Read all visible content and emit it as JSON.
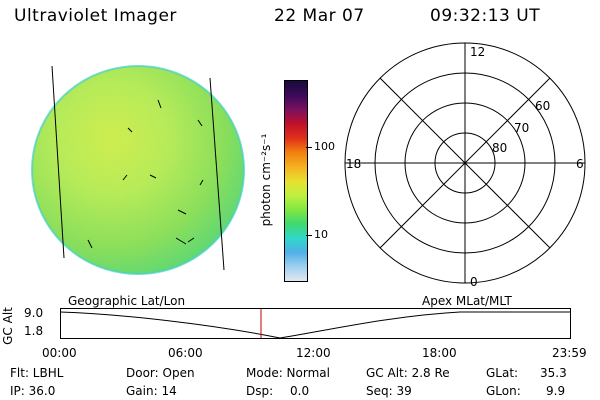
{
  "header": {
    "title": "Ultraviolet Imager",
    "date": "22 Mar 07",
    "time": "09:32:13 UT"
  },
  "colorbar": {
    "unit_label": "photon cm⁻²s⁻¹",
    "tick_100": "100",
    "tick_10": "10",
    "colors": [
      "#1a0a3a",
      "#3a0a5a",
      "#7a1060",
      "#c0102a",
      "#e0301a",
      "#f08010",
      "#f5b020",
      "#e8e030",
      "#c0f040",
      "#80e840",
      "#40d870",
      "#30d8c8",
      "#50b0e8",
      "#a0d0f0",
      "#e0e8f0"
    ]
  },
  "polar_grid": {
    "labels": {
      "top": "12",
      "bottom": "0",
      "left": "18",
      "right": "6",
      "ring_60": "60",
      "ring_70": "70",
      "ring_80": "80"
    }
  },
  "timeline": {
    "y_axis_label": "GC Alt",
    "y_top": "9.0",
    "y_bottom": "1.8",
    "left_label": "Geographic Lat/Lon",
    "right_label": "Apex MLat/MLT",
    "ticks": [
      "00:00",
      "06:00",
      "12:00",
      "18:00",
      "23:59"
    ],
    "marker_color": "#cc0000"
  },
  "footer": {
    "filter": "Flt: LBHL",
    "ip": "IP: 36.0",
    "door": "Door: Open",
    "gain": "Gain: 14",
    "mode": "Mode: Normal",
    "dsp_label": "Dsp:",
    "dsp_value": "0.0",
    "gc_alt": "GC Alt: 2.8 Re",
    "seq": "Seq: 39",
    "glat_label": "GLat:",
    "glat_value": "35.3",
    "glon_label": "GLon:",
    "glon_value": "9.9"
  }
}
